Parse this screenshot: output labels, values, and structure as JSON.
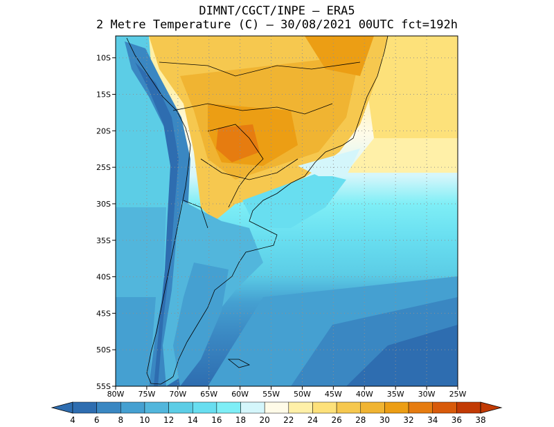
{
  "title_line1": "DIMNT/CGCT/INPE —  ERA5",
  "title_line2": "2 Metre Temperature (C) —  30/08/2021 00UTC fct=192h",
  "map": {
    "lon_range": [
      -80,
      -25
    ],
    "lat_range": [
      -55,
      -7
    ],
    "lat_ticks": [
      {
        "value": -10,
        "label": "10S"
      },
      {
        "value": -15,
        "label": "15S"
      },
      {
        "value": -20,
        "label": "20S"
      },
      {
        "value": -25,
        "label": "25S"
      },
      {
        "value": -30,
        "label": "30S"
      },
      {
        "value": -35,
        "label": "35S"
      },
      {
        "value": -40,
        "label": "40S"
      },
      {
        "value": -45,
        "label": "45S"
      },
      {
        "value": -50,
        "label": "50S"
      },
      {
        "value": -55,
        "label": "55S"
      }
    ],
    "lon_ticks": [
      {
        "value": -80,
        "label": "80W"
      },
      {
        "value": -75,
        "label": "75W"
      },
      {
        "value": -70,
        "label": "70W"
      },
      {
        "value": -65,
        "label": "65W"
      },
      {
        "value": -60,
        "label": "60W"
      },
      {
        "value": -55,
        "label": "55W"
      },
      {
        "value": -50,
        "label": "50W"
      },
      {
        "value": -45,
        "label": "45W"
      },
      {
        "value": -40,
        "label": "40W"
      },
      {
        "value": -35,
        "label": "35W"
      },
      {
        "value": -30,
        "label": "30W"
      },
      {
        "value": -25,
        "label": "25W"
      }
    ]
  },
  "colorbar": {
    "labels": [
      "4",
      "6",
      "8",
      "10",
      "12",
      "14",
      "16",
      "18",
      "20",
      "22",
      "24",
      "26",
      "28",
      "30",
      "32",
      "34",
      "36",
      "38"
    ],
    "colors": [
      "#2e6db0",
      "#3a87c2",
      "#45a0d1",
      "#52b6dc",
      "#5ccde6",
      "#68def0",
      "#7eeef6",
      "#d4f6fb",
      "#fffbe8",
      "#fff0a8",
      "#fde17a",
      "#f6c84f",
      "#f0b432",
      "#ec9e14",
      "#e67c10",
      "#d85a0a",
      "#c23a04"
    ]
  },
  "chart_data": {
    "type": "heatmap",
    "title": "DIMNT/CGCT/INPE —  ERA5 / 2 Metre Temperature (C) —  30/08/2021 00UTC fct=192h",
    "variable": "2 Metre Temperature",
    "units": "C",
    "valid": "30/08/2021 00UTC",
    "forecast_hour": 192,
    "x_range": [
      -80,
      -25
    ],
    "y_range": [
      -55,
      -7
    ],
    "color_levels": [
      4,
      6,
      8,
      10,
      12,
      14,
      16,
      18,
      20,
      22,
      24,
      26,
      28,
      30,
      32,
      34,
      36,
      38
    ],
    "notes": "warmest (32-34C) over Paraguay/central South America; 4-10C over southern Atlantic and Andes"
  }
}
